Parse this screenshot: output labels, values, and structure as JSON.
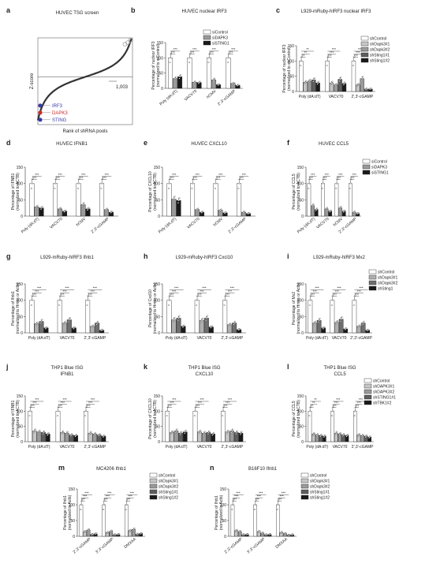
{
  "chart_data": [
    {
      "id": "a",
      "type": "scatter",
      "title": "HUVEC TSG screen",
      "ylabel": "Z-score",
      "xlabel": "Rank of shRNA pools",
      "annotation_label": "1,003",
      "highlights": [
        {
          "label": "IRF3",
          "color": "#3a3aa8"
        },
        {
          "label": "DAPK3",
          "color": "#cc2b2b"
        },
        {
          "label": "STING",
          "color": "#3a3aa8"
        }
      ]
    },
    {
      "id": "b",
      "type": "bar",
      "title": "HUVEC nuclear IRF3",
      "ylabel": "Percentage of nuclear IRF3 (normalized to siControl)",
      "ylim": [
        0,
        150
      ],
      "yticks": [
        "0",
        "50",
        "100",
        "150"
      ],
      "categories": [
        "Poly (dA:dT)",
        "VACV70",
        "hCMV",
        "2′,3′-cGAMP"
      ],
      "series": [
        {
          "name": "siControl",
          "values": [
            100,
            100,
            100,
            100
          ]
        },
        {
          "name": "siDAPK3",
          "values": [
            32,
            20,
            28,
            16
          ]
        },
        {
          "name": "siSTING1",
          "values": [
            38,
            19,
            12,
            10
          ]
        }
      ],
      "sig": [
        "***",
        "***",
        "***",
        "***"
      ]
    },
    {
      "id": "c",
      "type": "bar",
      "title": "L929-mRuby-hIRF3 nuclear IRF3",
      "ylabel": "Percentage of nuclear IRF3 (normalized to shControl)",
      "ylim": [
        0,
        150
      ],
      "yticks": [
        "0",
        "50",
        "100",
        "150"
      ],
      "categories": [
        "Poly (dA:dT)",
        "VACV70",
        "2′,3′-cGAMP"
      ],
      "series": [
        {
          "name": "shControl",
          "values": [
            100,
            100,
            100
          ]
        },
        {
          "name": "shDapk3#1",
          "values": [
            30,
            28,
            22
          ]
        },
        {
          "name": "shDapk3#2",
          "values": [
            34,
            22,
            42
          ]
        },
        {
          "name": "shSting1#1",
          "values": [
            38,
            40,
            8
          ]
        },
        {
          "name": "shSting1#2",
          "values": [
            28,
            26,
            8
          ]
        }
      ],
      "sig": [
        "**",
        "***",
        "***"
      ]
    },
    {
      "id": "d",
      "type": "bar",
      "title": "HUVEC IFNB1",
      "ylabel": "Percentage of IFNB1 (normalized to ACTB)",
      "ylim": [
        0,
        150
      ],
      "yticks": [
        "0",
        "50",
        "100",
        "150"
      ],
      "categories": [
        "Poly (dA:dT)",
        "VACV70",
        "hCMV",
        "2′,3′-cGAMP"
      ],
      "series": [
        {
          "name": "siControl",
          "values": [
            100,
            100,
            100,
            100
          ]
        },
        {
          "name": "siDAPK3",
          "values": [
            28,
            22,
            35,
            20
          ]
        },
        {
          "name": "siSTING1",
          "values": [
            25,
            15,
            22,
            12
          ]
        }
      ],
      "sig": [
        "***",
        "***",
        "***",
        "***"
      ]
    },
    {
      "id": "e",
      "type": "bar",
      "title": "HUVEC CXCL10",
      "ylabel": "Percentage of CXCL10 (normalized to ACTB)",
      "ylim": [
        0,
        150
      ],
      "yticks": [
        "0",
        "50",
        "100",
        "150"
      ],
      "categories": [
        "Poly (dA:dT)",
        "VACV70",
        "hCMV",
        "2′,3′-cGAMP"
      ],
      "series": [
        {
          "name": "siControl",
          "values": [
            100,
            100,
            100,
            100
          ]
        },
        {
          "name": "siDAPK3",
          "values": [
            52,
            20,
            18,
            12
          ]
        },
        {
          "name": "siSTING1",
          "values": [
            48,
            12,
            10,
            8
          ]
        }
      ],
      "sig": [
        "***",
        "***",
        "***",
        "***"
      ]
    },
    {
      "id": "f",
      "type": "bar",
      "title": "HUVEC CCL5",
      "ylabel": "Percentage of CCL5 (normalized to ACTB)",
      "ylim": [
        0,
        150
      ],
      "yticks": [
        "0",
        "50",
        "100",
        "150"
      ],
      "categories": [
        "Poly (dA:dT)",
        "VACV70",
        "hCMV",
        "2′,3′-cGAMP"
      ],
      "series": [
        {
          "name": "siControl",
          "values": [
            100,
            100,
            100,
            100
          ]
        },
        {
          "name": "siDAPK3",
          "values": [
            32,
            22,
            25,
            12
          ]
        },
        {
          "name": "siSTING1",
          "values": [
            20,
            15,
            15,
            8
          ]
        }
      ],
      "sig": [
        "***",
        "***",
        "***",
        "***"
      ]
    },
    {
      "id": "g",
      "type": "bar",
      "title": "L929-mRuby-hIRF3 Ifnb1",
      "ylabel": "Percentage of Ifnb1 (normalized to Hmbs or Actb)",
      "ylim": [
        0,
        150
      ],
      "yticks": [
        "0",
        "50",
        "100",
        "150"
      ],
      "categories": [
        "Poly (dA:dT)",
        "VACV70",
        "2′,3′-cGAMP"
      ],
      "series": [
        {
          "name": "shControl",
          "values": [
            100,
            100,
            100
          ]
        },
        {
          "name": "shDapk3#1",
          "values": [
            28,
            30,
            20
          ]
        },
        {
          "name": "shDapk3#2",
          "values": [
            35,
            40,
            30
          ]
        },
        {
          "name": "shSting1",
          "values": [
            15,
            15,
            8
          ]
        }
      ],
      "sig": [
        "***",
        "***",
        "***"
      ]
    },
    {
      "id": "h",
      "type": "bar",
      "title": "L929-mRuby-hIRF3 Cxcl10",
      "ylabel": "Percentage of Cxcl10 (normalized to Hmbs or Actb)",
      "ylim": [
        0,
        150
      ],
      "yticks": [
        "0",
        "50",
        "100",
        "150"
      ],
      "categories": [
        "Poly (dA:dT)",
        "VACV70",
        "2′,3′-cGAMP"
      ],
      "series": [
        {
          "name": "shControl",
          "values": [
            100,
            100,
            100
          ]
        },
        {
          "name": "shDapk3#1",
          "values": [
            40,
            38,
            25
          ]
        },
        {
          "name": "shDapk3#2",
          "values": [
            45,
            45,
            30
          ]
        },
        {
          "name": "shSting1",
          "values": [
            20,
            18,
            10
          ]
        }
      ],
      "sig": [
        "***",
        "***",
        "***"
      ]
    },
    {
      "id": "i",
      "type": "bar",
      "title": "L929-mRuby-hIRF3 Mx2",
      "ylabel": "Percentage of Mx2 (normalized to Hmbs or Actb)",
      "ylim": [
        0,
        150
      ],
      "yticks": [
        "0",
        "50",
        "100",
        "150"
      ],
      "categories": [
        "Poly (dA:dT)",
        "VACV70",
        "2′,3′-cGAMP"
      ],
      "series": [
        {
          "name": "shControl",
          "values": [
            100,
            100,
            100
          ]
        },
        {
          "name": "shDapk3#1",
          "values": [
            30,
            32,
            20
          ]
        },
        {
          "name": "shDapk3#2",
          "values": [
            38,
            42,
            30
          ]
        },
        {
          "name": "shSting1",
          "values": [
            15,
            12,
            8
          ]
        }
      ],
      "sig": [
        "***",
        "***",
        "***"
      ]
    },
    {
      "id": "j",
      "type": "bar",
      "title": "THP1 Blue ISG IFNB1",
      "ylabel": "Percentage of IFNB1 (normalized to ACTB)",
      "ylim": [
        0,
        150
      ],
      "yticks": [
        "0",
        "50",
        "100",
        "150"
      ],
      "categories": [
        "Poly (dA:dT)",
        "VACV70",
        "2′,3′-cGAMP"
      ],
      "series": [
        {
          "name": "shControl",
          "values": [
            100,
            100,
            100
          ]
        },
        {
          "name": "shDAPK3#1",
          "values": [
            35,
            30,
            28
          ]
        },
        {
          "name": "shDAPK3#2",
          "values": [
            32,
            28,
            25
          ]
        },
        {
          "name": "shSTING1#1",
          "values": [
            30,
            22,
            22
          ]
        },
        {
          "name": "shTBK1#2",
          "values": [
            25,
            20,
            18
          ]
        }
      ],
      "sig": [
        "***",
        "***",
        "***"
      ]
    },
    {
      "id": "k",
      "type": "bar",
      "title": "THP1 Blue ISG CXCL10",
      "ylabel": "Percentage of CXCL10 (normalized to ACTB)",
      "ylim": [
        0,
        150
      ],
      "yticks": [
        "0",
        "50",
        "100",
        "150"
      ],
      "categories": [
        "Poly (dA:dT)",
        "VACV70",
        "2′,3′-cGAMP"
      ],
      "series": [
        {
          "name": "shControl",
          "values": [
            100,
            100,
            100
          ]
        },
        {
          "name": "shDAPK3#1",
          "values": [
            30,
            32,
            32
          ]
        },
        {
          "name": "shDAPK3#2",
          "values": [
            35,
            28,
            35
          ]
        },
        {
          "name": "shSTING1#1",
          "values": [
            28,
            30,
            30
          ]
        },
        {
          "name": "shTBK1#2",
          "values": [
            32,
            25,
            28
          ]
        }
      ],
      "sig": [
        "***",
        "***",
        "***"
      ]
    },
    {
      "id": "l",
      "type": "bar",
      "title": "THP1 Blue ISG CCL5",
      "ylabel": "Percentage of CCL5 (normalized to ACTB)",
      "ylim": [
        0,
        150
      ],
      "yticks": [
        "0",
        "50",
        "100",
        "150"
      ],
      "categories": [
        "Poly (dA:dT)",
        "VACV70",
        "2′,3′-cGAMP"
      ],
      "series": [
        {
          "name": "shControl",
          "values": [
            100,
            100,
            100
          ]
        },
        {
          "name": "shDAPK3#1",
          "values": [
            25,
            28,
            22
          ]
        },
        {
          "name": "shDAPK3#2",
          "values": [
            22,
            25,
            20
          ]
        },
        {
          "name": "shSTING1#1",
          "values": [
            20,
            22,
            18
          ]
        },
        {
          "name": "shTBK1#2",
          "values": [
            18,
            20,
            15
          ]
        }
      ],
      "sig": [
        "**",
        "***",
        "***"
      ]
    },
    {
      "id": "m",
      "type": "bar",
      "title": "MC4206 Ifnb1",
      "ylabel": "Percentage of Ifnb1 (normalized to Actb)",
      "ylim": [
        0,
        150
      ],
      "yticks": [
        "0",
        "50",
        "100",
        "150"
      ],
      "categories": [
        "2′,3′-cGAMP",
        "3′,3′-cGAMP",
        "DMXAA"
      ],
      "series": [
        {
          "name": "shControl",
          "values": [
            100,
            100,
            100
          ]
        },
        {
          "name": "shDapk3#1",
          "values": [
            15,
            12,
            18
          ]
        },
        {
          "name": "shDapk3#2",
          "values": [
            20,
            16,
            22
          ]
        },
        {
          "name": "shSting1#1",
          "values": [
            6,
            5,
            7
          ]
        },
        {
          "name": "shSting1#2",
          "values": [
            8,
            6,
            9
          ]
        }
      ],
      "sig": [
        "***",
        "***",
        "***"
      ]
    },
    {
      "id": "n",
      "type": "bar",
      "title": "B16F10 Ifnb1",
      "ylabel": "Percentage of Ifnb1 (normalized to Actb)",
      "ylim": [
        0,
        150
      ],
      "yticks": [
        "0",
        "50",
        "100",
        "150"
      ],
      "categories": [
        "2′,3′-cGAMP",
        "3′,3′-cGAMP",
        "DMXAA"
      ],
      "series": [
        {
          "name": "shControl",
          "values": [
            100,
            100,
            100
          ]
        },
        {
          "name": "shDapk3#1",
          "values": [
            18,
            15,
            12
          ]
        },
        {
          "name": "shDapk3#2",
          "values": [
            15,
            10,
            9
          ]
        },
        {
          "name": "shSting1#1",
          "values": [
            5,
            5,
            4
          ]
        },
        {
          "name": "shSting1#2",
          "values": [
            6,
            6,
            5
          ]
        }
      ],
      "sig": [
        "***",
        "***",
        "***"
      ]
    }
  ],
  "colors": {
    "bar_palette_3": [
      "#ffffff",
      "#9a9a9a",
      "#1a1a1a"
    ],
    "bar_palette_4": [
      "#ffffff",
      "#b0b0b0",
      "#6e6e6e",
      "#1a1a1a"
    ],
    "bar_palette_5": [
      "#ffffff",
      "#c6c6c6",
      "#9a9a9a",
      "#5e5e5e",
      "#1a1a1a"
    ],
    "scatter_main": "#333333",
    "scatter_top": "#9a9a9a"
  }
}
